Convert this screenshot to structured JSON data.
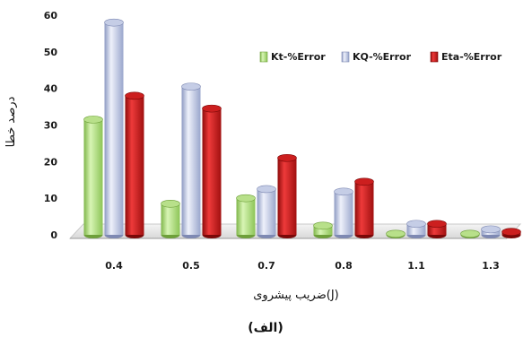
{
  "chart_data": {
    "type": "bar",
    "title": "",
    "xlabel": "ضریب پیشروی(J)",
    "ylabel": "درصد خطا",
    "caption": "(الف)",
    "categories": [
      "0.4",
      "0.5",
      "0.7",
      "0.8",
      "1.1",
      "1.3"
    ],
    "ylim": [
      0,
      60
    ],
    "yticks": [
      0,
      10,
      20,
      30,
      40,
      50,
      60
    ],
    "grid": false,
    "legend_position": "top-right",
    "series": [
      {
        "name": "Kt-%Error",
        "color": "#b8e08a",
        "values": [
          31.5,
          8.5,
          10.0,
          2.5,
          0.3,
          0.3
        ]
      },
      {
        "name": "KQ-%Error",
        "color": "#c5cde6",
        "values": [
          58.0,
          40.5,
          12.5,
          11.8,
          3.0,
          1.5
        ]
      },
      {
        "name": "Eta-%Error",
        "color": "#cc1f1f",
        "values": [
          38.0,
          34.5,
          21.0,
          14.5,
          3.0,
          0.8
        ]
      }
    ]
  }
}
